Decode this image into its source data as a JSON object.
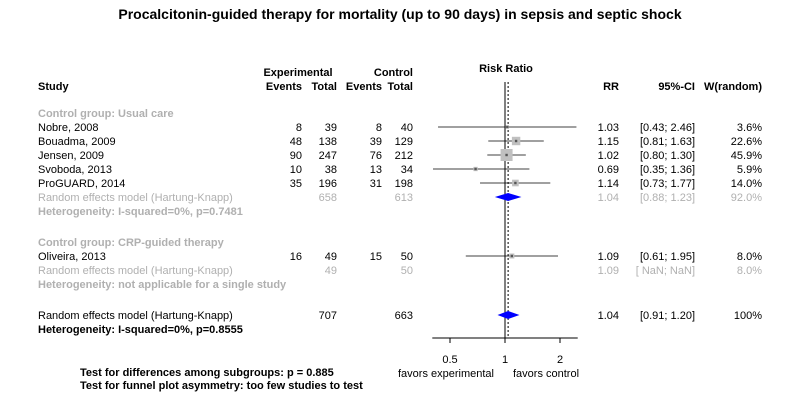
{
  "chart_data": {
    "type": "forest",
    "title": "Procalcitonin-guided therapy for mortality (up to 90 days) in sepsis and septic shock",
    "columns": {
      "study": "Study",
      "experimental": "Experimental",
      "control": "Control",
      "events": "Events",
      "total": "Total",
      "risk_ratio": "Risk Ratio",
      "rr": "RR",
      "ci": "95%-CI",
      "weight": "W(random)"
    },
    "x_axis": {
      "scale": "log",
      "ticks": [
        0.5,
        1,
        2
      ],
      "tick_labels": [
        "0.5",
        "1",
        "2"
      ],
      "range": [
        0.4,
        2.5
      ],
      "left_label": "favors experimental",
      "right_label": "favors control",
      "reference_line": 1
    },
    "groups": [
      {
        "label": "Control group: Usual care",
        "studies": [
          {
            "name": "Nobre, 2008",
            "exp_events": "8",
            "exp_total": "39",
            "ctrl_events": "8",
            "ctrl_total": "40",
            "rr": 1.03,
            "lower": 0.43,
            "upper": 2.46,
            "rr_text": "1.03",
            "ci_text": "[0.43; 2.46]",
            "weight_text": "3.6%",
            "weight": 3.6
          },
          {
            "name": "Bouadma, 2009",
            "exp_events": "48",
            "exp_total": "138",
            "ctrl_events": "39",
            "ctrl_total": "129",
            "rr": 1.15,
            "lower": 0.81,
            "upper": 1.63,
            "rr_text": "1.15",
            "ci_text": "[0.81; 1.63]",
            "weight_text": "22.6%",
            "weight": 22.6
          },
          {
            "name": "Jensen, 2009",
            "exp_events": "90",
            "exp_total": "247",
            "ctrl_events": "76",
            "ctrl_total": "212",
            "rr": 1.02,
            "lower": 0.8,
            "upper": 1.3,
            "rr_text": "1.02",
            "ci_text": "[0.80; 1.30]",
            "weight_text": "45.9%",
            "weight": 45.9
          },
          {
            "name": "Svoboda, 2013",
            "exp_events": "10",
            "exp_total": "38",
            "ctrl_events": "13",
            "ctrl_total": "34",
            "rr": 0.69,
            "lower": 0.35,
            "upper": 1.36,
            "rr_text": "0.69",
            "ci_text": "[0.35; 1.36]",
            "weight_text": "5.9%",
            "weight": 5.9
          },
          {
            "name": "ProGUARD, 2014",
            "exp_events": "35",
            "exp_total": "196",
            "ctrl_events": "31",
            "ctrl_total": "198",
            "rr": 1.14,
            "lower": 0.73,
            "upper": 1.77,
            "rr_text": "1.14",
            "ci_text": "[0.73; 1.77]",
            "weight_text": "14.0%",
            "weight": 14.0
          }
        ],
        "pooled": {
          "label": "Random effects model  (Hartung-Knapp)",
          "exp_total": "658",
          "ctrl_total": "613",
          "rr": 1.04,
          "lower": 0.88,
          "upper": 1.23,
          "rr_text": "1.04",
          "ci_text": "[0.88; 1.23]",
          "weight_text": "92.0%",
          "show_diamond": true
        },
        "heterogeneity": "Heterogeneity: I-squared=0%, p=0.7481"
      },
      {
        "label": "Control group: CRP-guided therapy",
        "studies": [
          {
            "name": "Oliveira, 2013",
            "exp_events": "16",
            "exp_total": "49",
            "ctrl_events": "15",
            "ctrl_total": "50",
            "rr": 1.09,
            "lower": 0.61,
            "upper": 1.95,
            "rr_text": "1.09",
            "ci_text": "[0.61; 1.95]",
            "weight_text": "8.0%",
            "weight": 8.0
          }
        ],
        "pooled": {
          "label": "Random effects model  (Hartung-Knapp)",
          "exp_total": "49",
          "ctrl_total": "50",
          "rr": 1.09,
          "lower": null,
          "upper": null,
          "rr_text": "1.09",
          "ci_text": "[ NaN;  NaN]",
          "weight_text": "8.0%",
          "show_diamond": false
        },
        "heterogeneity": "Heterogeneity: not applicable for a single study"
      }
    ],
    "overall": {
      "label": "Random effects model  (Hartung-Knapp)",
      "exp_total": "707",
      "ctrl_total": "663",
      "rr": 1.04,
      "lower": 0.91,
      "upper": 1.2,
      "rr_text": "1.04",
      "ci_text": "[0.91; 1.20]",
      "weight_text": "100%",
      "heterogeneity": "Heterogeneity: I-squared=0%, p=0.8555"
    },
    "footnotes": [
      "Test for differences among subgroups: p = 0.885",
      "Test for funnel plot asymmetry: too few studies to test"
    ],
    "colors": {
      "subgroup_diamond": "#0000ff",
      "grey_text": "#b0b0b0",
      "study_box": "#c0c0c0"
    }
  }
}
